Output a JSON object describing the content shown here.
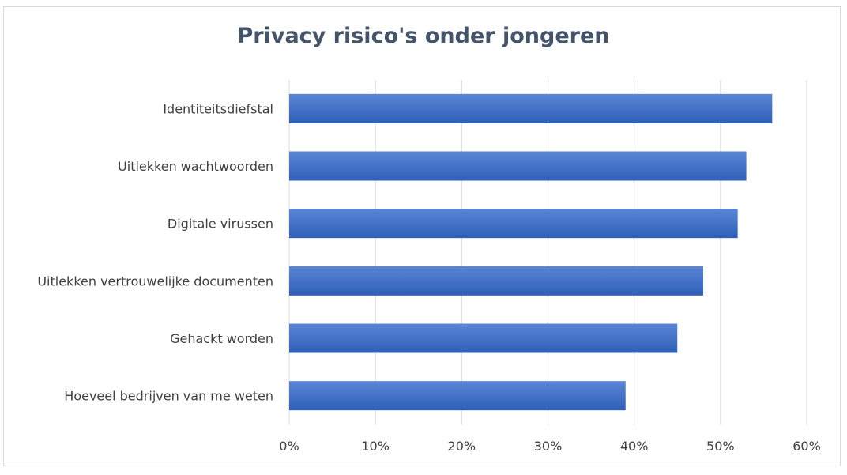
{
  "chart_data": {
    "type": "bar",
    "orientation": "horizontal",
    "title": "Privacy risico's onder jongeren",
    "xlabel": "",
    "ylabel": "",
    "categories": [
      "Identiteitsdiefstal",
      "Uitlekken wachtwoorden",
      "Digitale virussen",
      "Uitlekken vertrouwelijke documenten",
      "Gehackt worden",
      "Hoeveel bedrijven van me weten"
    ],
    "values": [
      0.56,
      0.53,
      0.52,
      0.48,
      0.45,
      0.39
    ],
    "xlim": [
      0,
      0.6
    ],
    "x_ticks": [
      0,
      0.1,
      0.2,
      0.3,
      0.4,
      0.5,
      0.6
    ],
    "x_tick_labels": [
      "0%",
      "10%",
      "20%",
      "30%",
      "40%",
      "50%",
      "60%"
    ],
    "grid": "vertical",
    "legend": "none",
    "colors": {
      "bar_light": "#5b86d6",
      "bar_dark": "#2f5fb8",
      "grid": "#d9d9d9",
      "title": "#44546a",
      "text": "#404040"
    }
  }
}
